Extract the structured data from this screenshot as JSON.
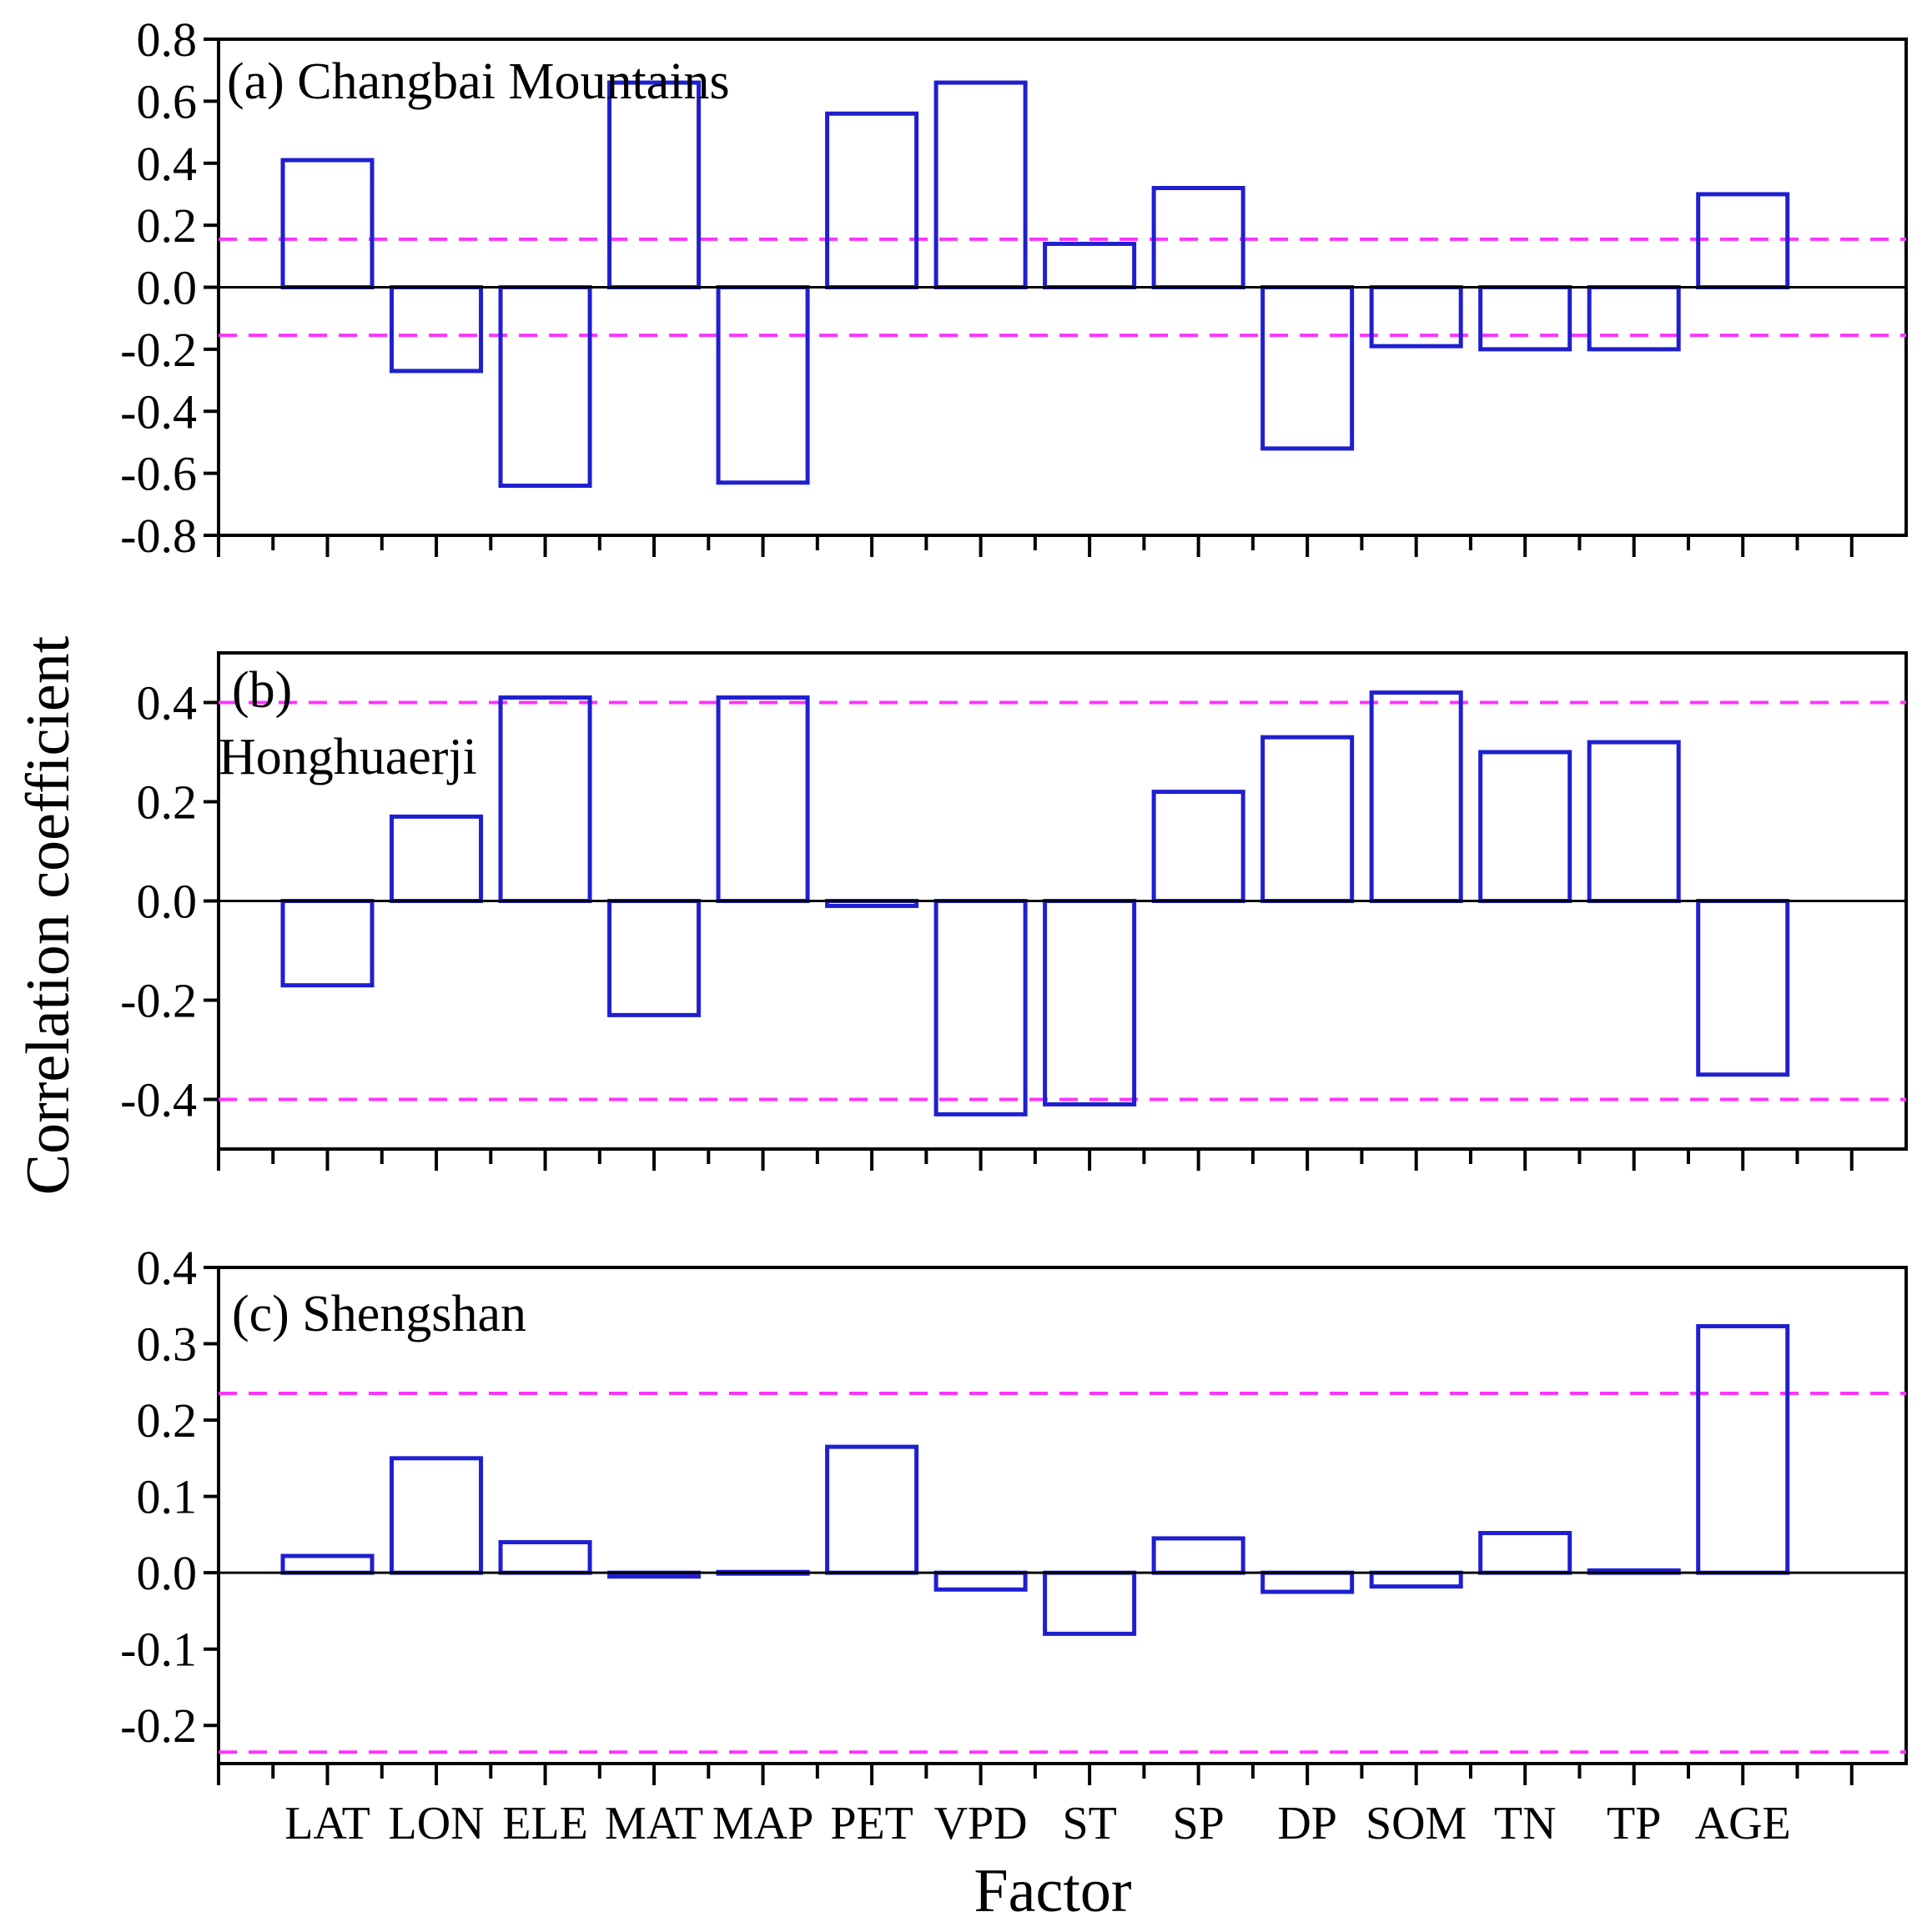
{
  "figure": {
    "ylabel": "Correlation coefficient",
    "xlabel": "Factor",
    "bar_color": "#1f1fd0",
    "threshold_color": "#ff33ff",
    "axis_color": "#000000"
  },
  "chart_data": [
    {
      "type": "bar",
      "title": "(a) Changbai Mountains",
      "title_lines": [
        "(a) Changbai Mountains"
      ],
      "categories": [
        "LAT",
        "LON",
        "ELE",
        "MAT",
        "MAP",
        "PET",
        "VPD",
        "ST",
        "SP",
        "DP",
        "SOM",
        "TN",
        "TP",
        "AGE"
      ],
      "values": [
        0.41,
        -0.27,
        -0.64,
        0.66,
        -0.63,
        0.56,
        0.66,
        0.14,
        0.32,
        -0.52,
        -0.19,
        -0.2,
        -0.2,
        0.3
      ],
      "ylim": [
        -0.8,
        0.8
      ],
      "yticks": [
        -0.8,
        -0.6,
        -0.4,
        -0.2,
        0.0,
        0.2,
        0.4,
        0.6,
        0.8
      ],
      "ytick_labels": [
        "-0.8",
        "-0.6",
        "-0.4",
        "-0.2",
        "0.0",
        "0.2",
        "0.4",
        "0.6",
        "0.8"
      ],
      "thresholds": [
        0.155,
        -0.155
      ],
      "xlabel": "",
      "ylabel": "Correlation coefficient"
    },
    {
      "type": "bar",
      "title": "(b) Honghuaerji",
      "title_lines": [
        "(b)",
        "Honghuaerji"
      ],
      "categories": [
        "LAT",
        "LON",
        "ELE",
        "MAT",
        "MAP",
        "PET",
        "VPD",
        "ST",
        "SP",
        "DP",
        "SOM",
        "TN",
        "TP",
        "AGE"
      ],
      "values": [
        -0.17,
        0.17,
        0.41,
        -0.23,
        0.41,
        -0.01,
        -0.43,
        -0.41,
        0.22,
        0.33,
        0.42,
        0.3,
        0.32,
        -0.35
      ],
      "ylim": [
        -0.5,
        0.5
      ],
      "yticks": [
        -0.4,
        -0.2,
        0.0,
        0.2,
        0.4
      ],
      "ytick_labels": [
        "-0.4",
        "-0.2",
        "0.0",
        "0.2",
        "0.4"
      ],
      "thresholds": [
        0.4,
        -0.4
      ],
      "xlabel": "",
      "ylabel": "Correlation coefficient"
    },
    {
      "type": "bar",
      "title": "(c) Shengshan",
      "title_lines": [
        "(c) Shengshan"
      ],
      "categories": [
        "LAT",
        "LON",
        "ELE",
        "MAT",
        "MAP",
        "PET",
        "VPD",
        "ST",
        "SP",
        "DP",
        "SOM",
        "TN",
        "TP",
        "AGE"
      ],
      "values": [
        0.022,
        0.15,
        0.04,
        -0.005,
        0.001,
        0.165,
        -0.022,
        -0.08,
        0.045,
        -0.025,
        -0.018,
        0.052,
        0.003,
        0.323
      ],
      "ylim": [
        -0.25,
        0.4
      ],
      "yticks": [
        -0.2,
        -0.1,
        0.0,
        0.1,
        0.2,
        0.3,
        0.4
      ],
      "ytick_labels": [
        "-0.2",
        "-0.1",
        "0.0",
        "0.1",
        "0.2",
        "0.3",
        "0.4"
      ],
      "thresholds": [
        0.235,
        -0.235
      ],
      "xlabel": "Factor",
      "ylabel": "Correlation coefficient"
    }
  ]
}
